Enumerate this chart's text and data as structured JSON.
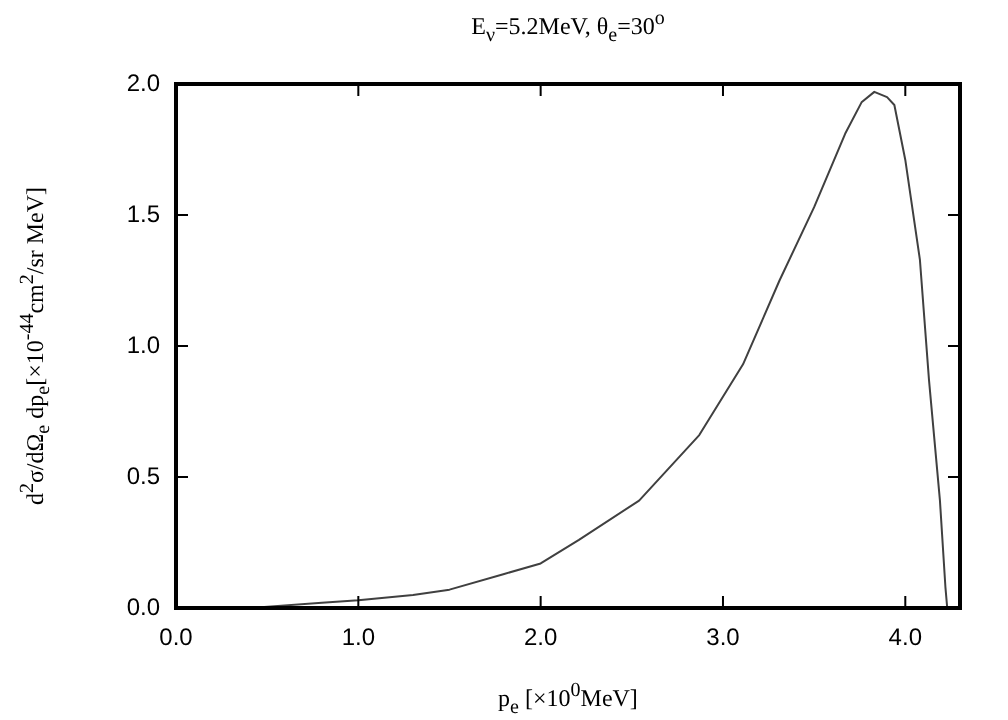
{
  "chart_data": {
    "type": "line",
    "title": "E$_{ν}$=5.2MeV,  θ$_{e}$=30$^{o}$",
    "xlabel": "p$_{e}$ [×10$^{0}$MeV]",
    "ylabel": "d$^{2}$σ/dΩ$_{e}$ dp$_{e}$[×10$^{-44}$cm$^{2}$/sr MeV]",
    "series": [
      {
        "color": "#404040",
        "x": [
          0.4,
          0.8,
          1.0,
          1.3,
          1.5,
          1.8,
          2.0,
          2.21,
          2.54,
          2.87,
          3.11,
          3.31,
          3.5,
          3.67,
          3.76,
          3.83,
          3.9,
          3.94,
          4.0,
          4.08,
          4.13,
          4.19,
          4.22,
          4.23
        ],
        "values": [
          0.0,
          0.02,
          0.03,
          0.05,
          0.07,
          0.13,
          0.17,
          0.26,
          0.41,
          0.66,
          0.93,
          1.25,
          1.53,
          1.81,
          1.93,
          1.97,
          1.95,
          1.92,
          1.71,
          1.33,
          0.87,
          0.41,
          0.08,
          0.0
        ]
      }
    ],
    "xlim": [
      0,
      4.3
    ],
    "ylim": [
      0,
      2.0
    ],
    "xticks": [
      {
        "value": 0,
        "label": "0.0"
      },
      {
        "value": 1,
        "label": "1.0"
      },
      {
        "value": 2,
        "label": "2.0"
      },
      {
        "value": 3,
        "label": "3.0"
      },
      {
        "value": 4,
        "label": "4.0"
      }
    ],
    "yticks": [
      {
        "value": 0,
        "label": "0.0"
      },
      {
        "value": 0.5,
        "label": "0.5"
      },
      {
        "value": 1,
        "label": "1.0"
      },
      {
        "value": 1.5,
        "label": "1.5"
      },
      {
        "value": 2,
        "label": "2.0"
      }
    ],
    "grid": false,
    "legend": false,
    "marker": "none",
    "line_style": "solid"
  }
}
